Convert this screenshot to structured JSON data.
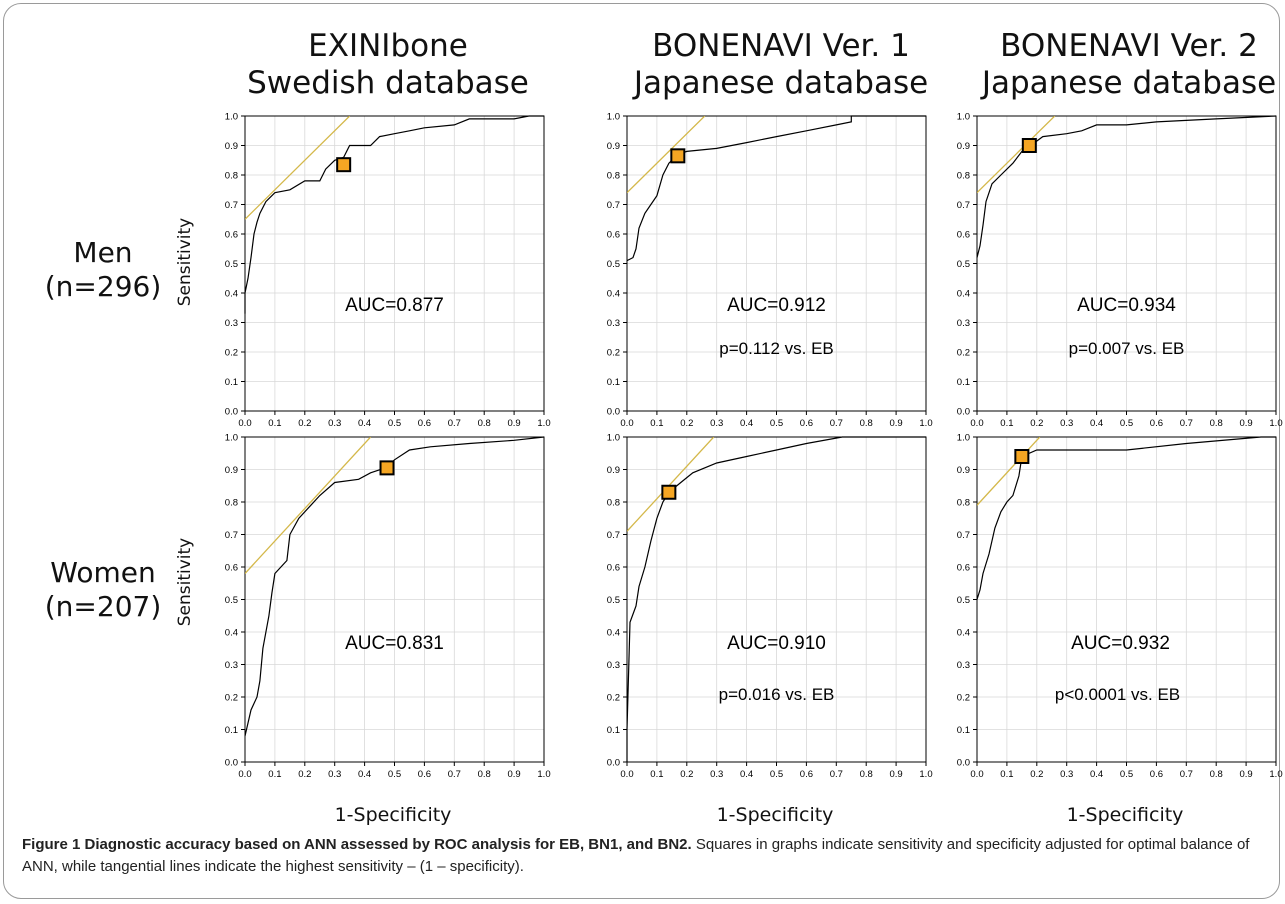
{
  "col_titles": [
    [
      "EXINIbone",
      "Swedish database"
    ],
    [
      "BONENAVI Ver. 1",
      "Japanese database"
    ],
    [
      "BONENAVI Ver. 2",
      "Japanese database"
    ]
  ],
  "row_labels": [
    [
      "Men",
      "(n=296)"
    ],
    [
      "Women",
      "(n=207)"
    ]
  ],
  "xlabel": "1-Specificity",
  "ylabel": "Sensitivity",
  "caption": {
    "bold": "Figure 1 Diagnostic accuracy based on ANN assessed by ROC analysis for EB, BN1, and BN2.",
    "text": " Squares in graphs indicate sensitivity and specificity adjusted for optimal balance of ANN, while tangential lines indicate the highest sensitivity – (1 – specificity)."
  },
  "colors": {
    "curve": "#000000",
    "tangent": "#d4b84a",
    "marker_fill": "#f5a623",
    "marker_edge": "#000000",
    "grid": "#d8d8d8"
  },
  "chart_data": [
    {
      "type": "line",
      "panel": "Men / EXINIbone",
      "xlim": [
        0,
        1
      ],
      "ylim": [
        0,
        1
      ],
      "ticks": [
        "0.0",
        "0.1",
        "0.2",
        "0.3",
        "0.4",
        "0.5",
        "0.6",
        "0.7",
        "0.8",
        "0.9",
        "1.0"
      ],
      "curve": [
        [
          0,
          0.33
        ],
        [
          0,
          0.4
        ],
        [
          0.01,
          0.45
        ],
        [
          0.02,
          0.52
        ],
        [
          0.03,
          0.6
        ],
        [
          0.04,
          0.64
        ],
        [
          0.05,
          0.67
        ],
        [
          0.07,
          0.71
        ],
        [
          0.1,
          0.74
        ],
        [
          0.15,
          0.75
        ],
        [
          0.2,
          0.78
        ],
        [
          0.25,
          0.78
        ],
        [
          0.27,
          0.82
        ],
        [
          0.3,
          0.85
        ],
        [
          0.33,
          0.86
        ],
        [
          0.35,
          0.9
        ],
        [
          0.42,
          0.9
        ],
        [
          0.45,
          0.93
        ],
        [
          0.5,
          0.94
        ],
        [
          0.55,
          0.95
        ],
        [
          0.6,
          0.96
        ],
        [
          0.7,
          0.97
        ],
        [
          0.75,
          0.99
        ],
        [
          0.9,
          0.99
        ],
        [
          0.95,
          1.0
        ],
        [
          1.0,
          1.0
        ]
      ],
      "optimal_point": [
        0.33,
        0.835
      ],
      "tangent": {
        "intercept": 0.65,
        "slope": 1
      },
      "annotations": [
        "AUC=0.877"
      ]
    },
    {
      "type": "line",
      "panel": "Men / BONENAVI Ver. 1",
      "xlim": [
        0,
        1
      ],
      "ylim": [
        0,
        1
      ],
      "ticks": [
        "0.0",
        "0.1",
        "0.2",
        "0.3",
        "0.4",
        "0.5",
        "0.6",
        "0.7",
        "0.8",
        "0.9",
        "1.0"
      ],
      "curve": [
        [
          0,
          0.51
        ],
        [
          0.02,
          0.52
        ],
        [
          0.03,
          0.55
        ],
        [
          0.04,
          0.62
        ],
        [
          0.06,
          0.67
        ],
        [
          0.08,
          0.7
        ],
        [
          0.1,
          0.73
        ],
        [
          0.12,
          0.8
        ],
        [
          0.14,
          0.84
        ],
        [
          0.17,
          0.87
        ],
        [
          0.2,
          0.88
        ],
        [
          0.3,
          0.89
        ],
        [
          0.4,
          0.91
        ],
        [
          0.5,
          0.93
        ],
        [
          0.6,
          0.95
        ],
        [
          0.7,
          0.97
        ],
        [
          0.75,
          0.98
        ],
        [
          0.75,
          1.0
        ],
        [
          1.0,
          1.0
        ]
      ],
      "optimal_point": [
        0.17,
        0.865
      ],
      "tangent": {
        "intercept": 0.74,
        "slope": 1
      },
      "annotations": [
        "AUC=0.912",
        "p=0.112 vs. EB"
      ]
    },
    {
      "type": "line",
      "panel": "Men / BONENAVI Ver. 2",
      "xlim": [
        0,
        1
      ],
      "ylim": [
        0,
        1
      ],
      "ticks": [
        "0.0",
        "0.1",
        "0.2",
        "0.3",
        "0.4",
        "0.5",
        "0.6",
        "0.7",
        "0.8",
        "0.9",
        "1.0"
      ],
      "curve": [
        [
          0,
          0.52
        ],
        [
          0.01,
          0.56
        ],
        [
          0.02,
          0.63
        ],
        [
          0.03,
          0.71
        ],
        [
          0.05,
          0.77
        ],
        [
          0.08,
          0.8
        ],
        [
          0.12,
          0.84
        ],
        [
          0.15,
          0.88
        ],
        [
          0.18,
          0.9
        ],
        [
          0.22,
          0.93
        ],
        [
          0.3,
          0.94
        ],
        [
          0.35,
          0.95
        ],
        [
          0.4,
          0.97
        ],
        [
          0.5,
          0.97
        ],
        [
          0.6,
          0.98
        ],
        [
          0.8,
          0.99
        ],
        [
          1.0,
          1.0
        ]
      ],
      "optimal_point": [
        0.175,
        0.9
      ],
      "tangent": {
        "intercept": 0.74,
        "slope": 1
      },
      "annotations": [
        "AUC=0.934",
        "p=0.007 vs. EB"
      ]
    },
    {
      "type": "line",
      "panel": "Women / EXINIbone",
      "xlim": [
        0,
        1
      ],
      "ylim": [
        0,
        1
      ],
      "ticks": [
        "0.0",
        "0.1",
        "0.2",
        "0.3",
        "0.4",
        "0.5",
        "0.6",
        "0.7",
        "0.8",
        "0.9",
        "1.0"
      ],
      "curve": [
        [
          0,
          0.08
        ],
        [
          0.01,
          0.12
        ],
        [
          0.02,
          0.16
        ],
        [
          0.04,
          0.2
        ],
        [
          0.05,
          0.25
        ],
        [
          0.06,
          0.35
        ],
        [
          0.08,
          0.45
        ],
        [
          0.09,
          0.52
        ],
        [
          0.1,
          0.58
        ],
        [
          0.14,
          0.62
        ],
        [
          0.15,
          0.7
        ],
        [
          0.18,
          0.75
        ],
        [
          0.22,
          0.79
        ],
        [
          0.25,
          0.82
        ],
        [
          0.3,
          0.86
        ],
        [
          0.38,
          0.87
        ],
        [
          0.42,
          0.89
        ],
        [
          0.47,
          0.905
        ],
        [
          0.5,
          0.93
        ],
        [
          0.55,
          0.96
        ],
        [
          0.62,
          0.97
        ],
        [
          0.75,
          0.98
        ],
        [
          0.9,
          0.99
        ],
        [
          1.0,
          1.0
        ]
      ],
      "optimal_point": [
        0.475,
        0.905
      ],
      "tangent": {
        "intercept": 0.58,
        "slope": 1
      },
      "annotations": [
        "AUC=0.831"
      ]
    },
    {
      "type": "line",
      "panel": "Women / BONENAVI Ver. 1",
      "xlim": [
        0,
        1
      ],
      "ylim": [
        0,
        1
      ],
      "ticks": [
        "0.0",
        "0.1",
        "0.2",
        "0.3",
        "0.4",
        "0.5",
        "0.6",
        "0.7",
        "0.8",
        "0.9",
        "1.0"
      ],
      "curve": [
        [
          0,
          0.0
        ],
        [
          0,
          0.1
        ],
        [
          0.01,
          0.43
        ],
        [
          0.03,
          0.48
        ],
        [
          0.04,
          0.54
        ],
        [
          0.06,
          0.6
        ],
        [
          0.08,
          0.68
        ],
        [
          0.1,
          0.75
        ],
        [
          0.12,
          0.8
        ],
        [
          0.14,
          0.83
        ],
        [
          0.18,
          0.86
        ],
        [
          0.22,
          0.89
        ],
        [
          0.3,
          0.92
        ],
        [
          0.4,
          0.94
        ],
        [
          0.5,
          0.96
        ],
        [
          0.6,
          0.98
        ],
        [
          0.72,
          1.0
        ],
        [
          1.0,
          1.0
        ]
      ],
      "optimal_point": [
        0.14,
        0.83
      ],
      "tangent": {
        "intercept": 0.71,
        "slope": 1
      },
      "annotations": [
        "AUC=0.910",
        "p=0.016 vs. EB"
      ]
    },
    {
      "type": "line",
      "panel": "Women / BONENAVI Ver. 2",
      "xlim": [
        0,
        1
      ],
      "ylim": [
        0,
        1
      ],
      "ticks": [
        "0.0",
        "0.1",
        "0.2",
        "0.3",
        "0.4",
        "0.5",
        "0.6",
        "0.7",
        "0.8",
        "0.9",
        "1.0"
      ],
      "curve": [
        [
          0,
          0.5
        ],
        [
          0.01,
          0.53
        ],
        [
          0.02,
          0.58
        ],
        [
          0.04,
          0.64
        ],
        [
          0.06,
          0.72
        ],
        [
          0.08,
          0.77
        ],
        [
          0.1,
          0.8
        ],
        [
          0.12,
          0.82
        ],
        [
          0.14,
          0.88
        ],
        [
          0.15,
          0.94
        ],
        [
          0.2,
          0.96
        ],
        [
          0.5,
          0.96
        ],
        [
          0.7,
          0.98
        ],
        [
          0.95,
          1.0
        ],
        [
          1.0,
          1.0
        ]
      ],
      "optimal_point": [
        0.15,
        0.94
      ],
      "tangent": {
        "intercept": 0.79,
        "slope": 1
      },
      "annotations": [
        "AUC=0.932",
        "p<0.0001 vs. EB"
      ]
    }
  ]
}
